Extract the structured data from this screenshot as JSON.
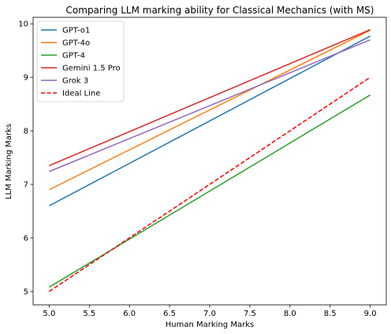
{
  "chart_data": {
    "type": "line",
    "title": "Comparing LLM marking ability for Classical Mechanics (with MS)",
    "xlabel": "Human Marking Marks",
    "ylabel": "LLM Marking Marks",
    "xlim": [
      4.8,
      9.2
    ],
    "ylim": [
      4.75,
      10.12
    ],
    "x_ticks": [
      5.0,
      5.5,
      6.0,
      6.5,
      7.0,
      7.5,
      8.0,
      8.5,
      9.0
    ],
    "x_tick_labels": [
      "5.0",
      "5.5",
      "6.0",
      "6.5",
      "7.0",
      "7.5",
      "8.0",
      "8.5",
      "9.0"
    ],
    "y_ticks": [
      5,
      6,
      7,
      8,
      9,
      10
    ],
    "y_tick_labels": [
      "5",
      "6",
      "7",
      "8",
      "9",
      "10"
    ],
    "grid": false,
    "legend_position": "top-left",
    "x": [
      5.0,
      9.0
    ],
    "series": [
      {
        "name": "GPT-o1",
        "values": [
          6.6,
          9.77
        ],
        "color": "#1f77b4",
        "style": "solid"
      },
      {
        "name": "GPT-4o",
        "values": [
          6.9,
          9.88
        ],
        "color": "#ff7f0e",
        "style": "solid"
      },
      {
        "name": "GPT-4",
        "values": [
          5.08,
          8.67
        ],
        "color": "#2ca02c",
        "style": "solid"
      },
      {
        "name": "Gemini 1.5 Pro",
        "values": [
          7.35,
          9.89
        ],
        "color": "#d62728",
        "style": "solid"
      },
      {
        "name": "Grok 3",
        "values": [
          7.24,
          9.7
        ],
        "color": "#9467bd",
        "style": "solid"
      },
      {
        "name": "Ideal Line",
        "values": [
          5.0,
          9.0
        ],
        "color": "#ff0000",
        "style": "dashed"
      }
    ]
  }
}
